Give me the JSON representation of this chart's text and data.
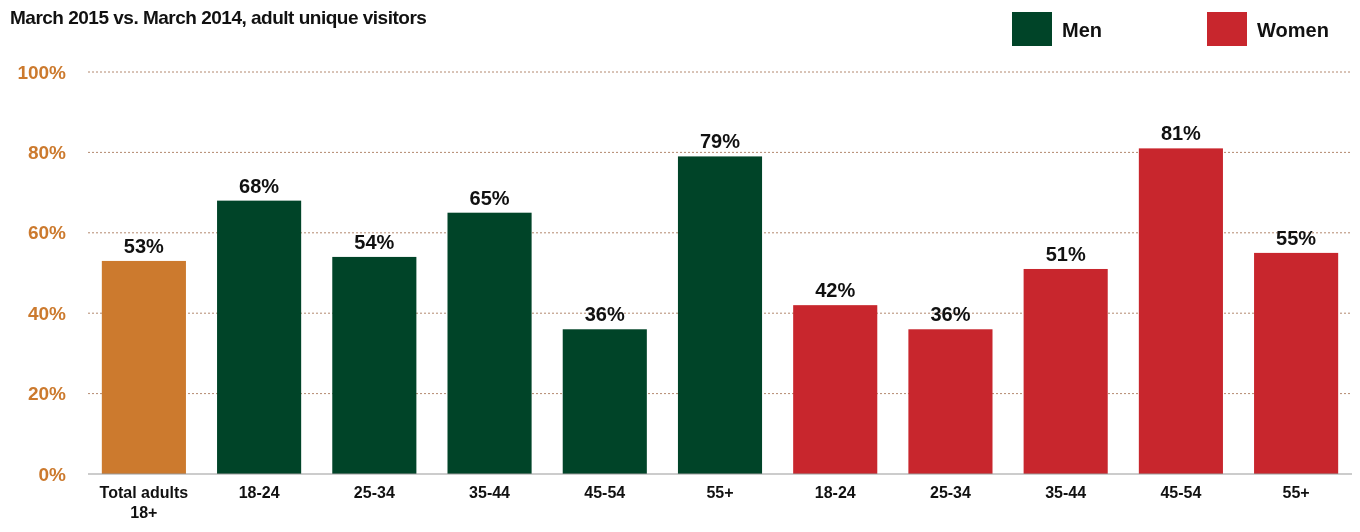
{
  "chart_data": {
    "type": "bar",
    "title": "March 2015 vs. March 2014, adult unique visitors",
    "categories": [
      "Total adults 18+",
      "18-24",
      "25-34",
      "35-44",
      "45-54",
      "55+",
      "18-24",
      "25-34",
      "35-44",
      "45-54",
      "55+"
    ],
    "series": [
      {
        "color": "#cc7a2e",
        "values": [
          53,
          null,
          null,
          null,
          null,
          null,
          null,
          null,
          null,
          null,
          null
        ],
        "value_labels": [
          "53%",
          null,
          null,
          null,
          null,
          null,
          null,
          null,
          null,
          null,
          null
        ]
      },
      {
        "name": "Men",
        "color": "#004428",
        "values": [
          null,
          68,
          54,
          65,
          36,
          79,
          null,
          null,
          null,
          null,
          null
        ],
        "value_labels": [
          null,
          "68%",
          "54%",
          "65%",
          "36%",
          "79%",
          null,
          null,
          null,
          null,
          null
        ]
      },
      {
        "name": "Women",
        "color": "#c8262d",
        "values": [
          null,
          null,
          null,
          null,
          null,
          null,
          42,
          36,
          51,
          81,
          55
        ],
        "value_labels": [
          null,
          null,
          null,
          null,
          null,
          null,
          "42%",
          "36%",
          "51%",
          "81%",
          "55%"
        ]
      }
    ],
    "stacked": true,
    "ylim": [
      0,
      100
    ],
    "yticks": [
      {
        "value": 0,
        "label": "0%"
      },
      {
        "value": 20,
        "label": "20%"
      },
      {
        "value": 40,
        "label": "40%"
      },
      {
        "value": 60,
        "label": "60%"
      },
      {
        "value": 80,
        "label": "80%"
      },
      {
        "value": 100,
        "label": "100%"
      }
    ],
    "grid": "y",
    "legend": "top right"
  }
}
